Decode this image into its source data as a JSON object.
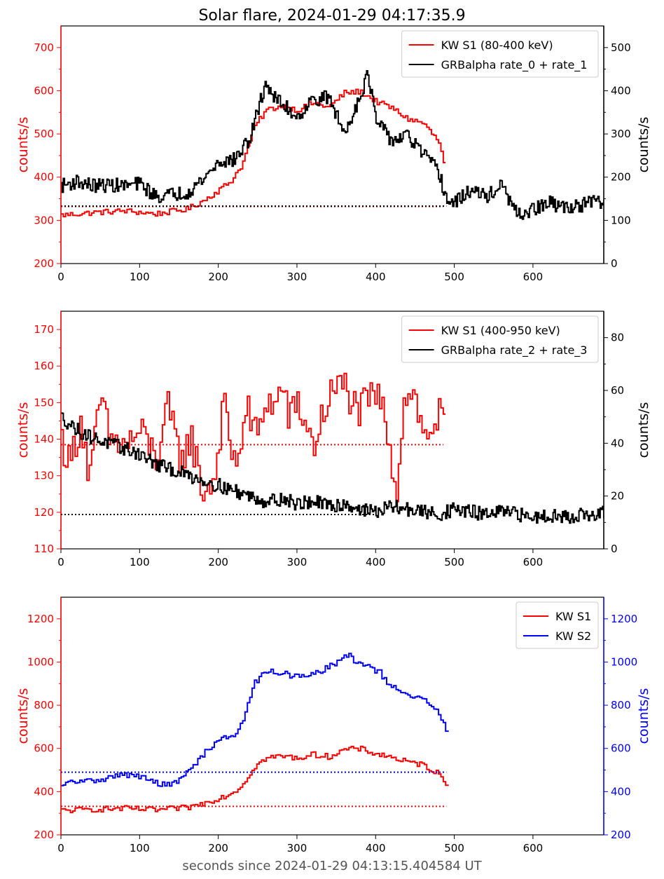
{
  "figure": {
    "title": "Solar flare, 2024-01-29 04:17:35.9",
    "xlabel": "seconds since 2024-01-29 04:13:15.404584 UT",
    "xlabel_color": "#555555"
  },
  "colors": {
    "red": "#ff0000",
    "black": "#000000",
    "blue": "#0000ff"
  },
  "chart_data": [
    {
      "type": "line",
      "panel": "top",
      "xlim": [
        0,
        690
      ],
      "x_ticks": [
        0,
        100,
        200,
        300,
        400,
        500,
        600
      ],
      "left_axis": {
        "label": "counts/s",
        "color": "#ff0000",
        "ylim": [
          200,
          750
        ],
        "ticks": [
          200,
          300,
          400,
          500,
          600,
          700
        ]
      },
      "right_axis": {
        "label": "counts/s",
        "color": "#000000",
        "ylim": [
          0,
          550
        ],
        "ticks": [
          0,
          100,
          200,
          300,
          400,
          500
        ]
      },
      "legend_position": "top-right",
      "series": [
        {
          "name": "KW S1 (80-400 keV)",
          "color": "#ff0000",
          "axis": "left",
          "step": true,
          "x": [
            0,
            40,
            80,
            120,
            160,
            180,
            200,
            215,
            230,
            245,
            260,
            280,
            300,
            320,
            340,
            360,
            380,
            400,
            420,
            440,
            460,
            480,
            486
          ],
          "y": [
            312,
            318,
            322,
            315,
            326,
            345,
            370,
            390,
            430,
            515,
            555,
            565,
            555,
            572,
            562,
            595,
            598,
            575,
            560,
            535,
            525,
            480,
            432
          ],
          "baseline": 332
        },
        {
          "name": "GRBalpha rate_0 + rate_1",
          "color": "#000000",
          "axis": "right",
          "step": true,
          "x": [
            0,
            20,
            40,
            60,
            80,
            100,
            120,
            140,
            160,
            180,
            200,
            220,
            240,
            250,
            260,
            270,
            280,
            300,
            320,
            340,
            360,
            380,
            390,
            400,
            420,
            440,
            460,
            480,
            490,
            500,
            520,
            540,
            560,
            580,
            600,
            620,
            640,
            660,
            680,
            690
          ],
          "y": [
            180,
            190,
            180,
            182,
            180,
            185,
            155,
            160,
            165,
            195,
            235,
            240,
            290,
            355,
            420,
            385,
            370,
            340,
            380,
            385,
            300,
            390,
            440,
            330,
            285,
            295,
            255,
            210,
            145,
            140,
            170,
            155,
            180,
            110,
            125,
            140,
            130,
            135,
            145,
            135
          ],
          "baseline": 133
        }
      ]
    },
    {
      "type": "line",
      "panel": "middle",
      "xlim": [
        0,
        690
      ],
      "x_ticks": [
        0,
        100,
        200,
        300,
        400,
        500,
        600
      ],
      "left_axis": {
        "label": "counts/s",
        "color": "#ff0000",
        "ylim": [
          110,
          175
        ],
        "ticks": [
          110,
          120,
          130,
          140,
          150,
          160,
          170
        ]
      },
      "right_axis": {
        "label": "counts/s",
        "color": "#000000",
        "ylim": [
          0,
          90
        ],
        "ticks": [
          0,
          20,
          40,
          60,
          80
        ]
      },
      "legend_position": "top-right",
      "series": [
        {
          "name": "KW S1 (400-950 keV)",
          "color": "#ff0000",
          "axis": "left",
          "step": true,
          "x": [
            0,
            10,
            25,
            35,
            50,
            60,
            80,
            100,
            120,
            135,
            150,
            165,
            180,
            195,
            205,
            220,
            235,
            250,
            260,
            270,
            280,
            290,
            300,
            320,
            340,
            360,
            375,
            390,
            400,
            415,
            425,
            435,
            445,
            460,
            475,
            486
          ],
          "y": [
            140,
            133,
            146,
            128,
            152,
            140,
            138,
            142,
            135,
            148,
            135,
            140,
            125,
            130,
            150,
            132,
            148,
            140,
            152,
            148,
            155,
            145,
            150,
            138,
            152,
            155,
            147,
            150,
            153,
            142,
            125,
            150,
            155,
            140,
            145,
            147
          ],
          "baseline": 138.5
        },
        {
          "name": "GRBalpha rate_2 + rate_3",
          "color": "#000000",
          "axis": "right",
          "step": true,
          "x": [
            0,
            20,
            40,
            60,
            80,
            100,
            120,
            140,
            160,
            180,
            200,
            220,
            240,
            260,
            280,
            300,
            320,
            340,
            360,
            380,
            400,
            420,
            440,
            460,
            480,
            500,
            520,
            540,
            560,
            580,
            600,
            620,
            640,
            660,
            680,
            690
          ],
          "y": [
            50,
            45,
            42,
            40,
            38,
            36,
            32,
            30,
            28,
            26,
            24,
            22,
            20,
            18,
            19,
            17,
            18,
            16,
            17,
            15,
            14,
            16,
            15,
            14,
            13,
            15,
            14,
            13,
            14,
            13,
            12,
            13,
            12,
            13,
            12,
            14
          ],
          "baseline": 13
        }
      ]
    },
    {
      "type": "line",
      "panel": "bottom",
      "xlim": [
        0,
        690
      ],
      "x_ticks": [
        0,
        100,
        200,
        300,
        400,
        500,
        600
      ],
      "left_axis": {
        "label": "counts/s",
        "color": "#ff0000",
        "ylim": [
          200,
          1300
        ],
        "ticks": [
          200,
          400,
          600,
          800,
          1000,
          1200
        ]
      },
      "right_axis": {
        "label": "counts/s",
        "color": "#0000ff",
        "ylim": [
          200,
          1300
        ],
        "ticks": [
          200,
          400,
          600,
          800,
          1000,
          1200
        ]
      },
      "legend_position": "top-right",
      "series": [
        {
          "name": "KW S1",
          "color": "#ff0000",
          "axis": "left",
          "step": true,
          "x": [
            0,
            40,
            80,
            120,
            160,
            180,
            200,
            215,
            230,
            245,
            260,
            280,
            300,
            320,
            340,
            360,
            380,
            400,
            420,
            440,
            460,
            480,
            490
          ],
          "y": [
            312,
            318,
            322,
            315,
            326,
            345,
            370,
            390,
            430,
            515,
            555,
            565,
            555,
            572,
            562,
            595,
            598,
            575,
            560,
            535,
            525,
            480,
            430
          ],
          "baseline": 332
        },
        {
          "name": "KW S2",
          "color": "#0000ff",
          "axis": "right",
          "step": true,
          "x": [
            0,
            10,
            40,
            80,
            100,
            120,
            140,
            155,
            170,
            180,
            190,
            200,
            215,
            225,
            235,
            240,
            245,
            255,
            265,
            280,
            300,
            320,
            340,
            355,
            365,
            375,
            390,
            405,
            415,
            430,
            440,
            460,
            470,
            480,
            488,
            490
          ],
          "y": [
            420,
            445,
            450,
            480,
            470,
            440,
            430,
            470,
            530,
            570,
            610,
            640,
            660,
            680,
            780,
            830,
            900,
            940,
            960,
            950,
            930,
            940,
            980,
            1010,
            1030,
            1000,
            980,
            950,
            900,
            860,
            840,
            830,
            800,
            760,
            700,
            640
          ],
          "baseline": 490
        }
      ]
    }
  ]
}
